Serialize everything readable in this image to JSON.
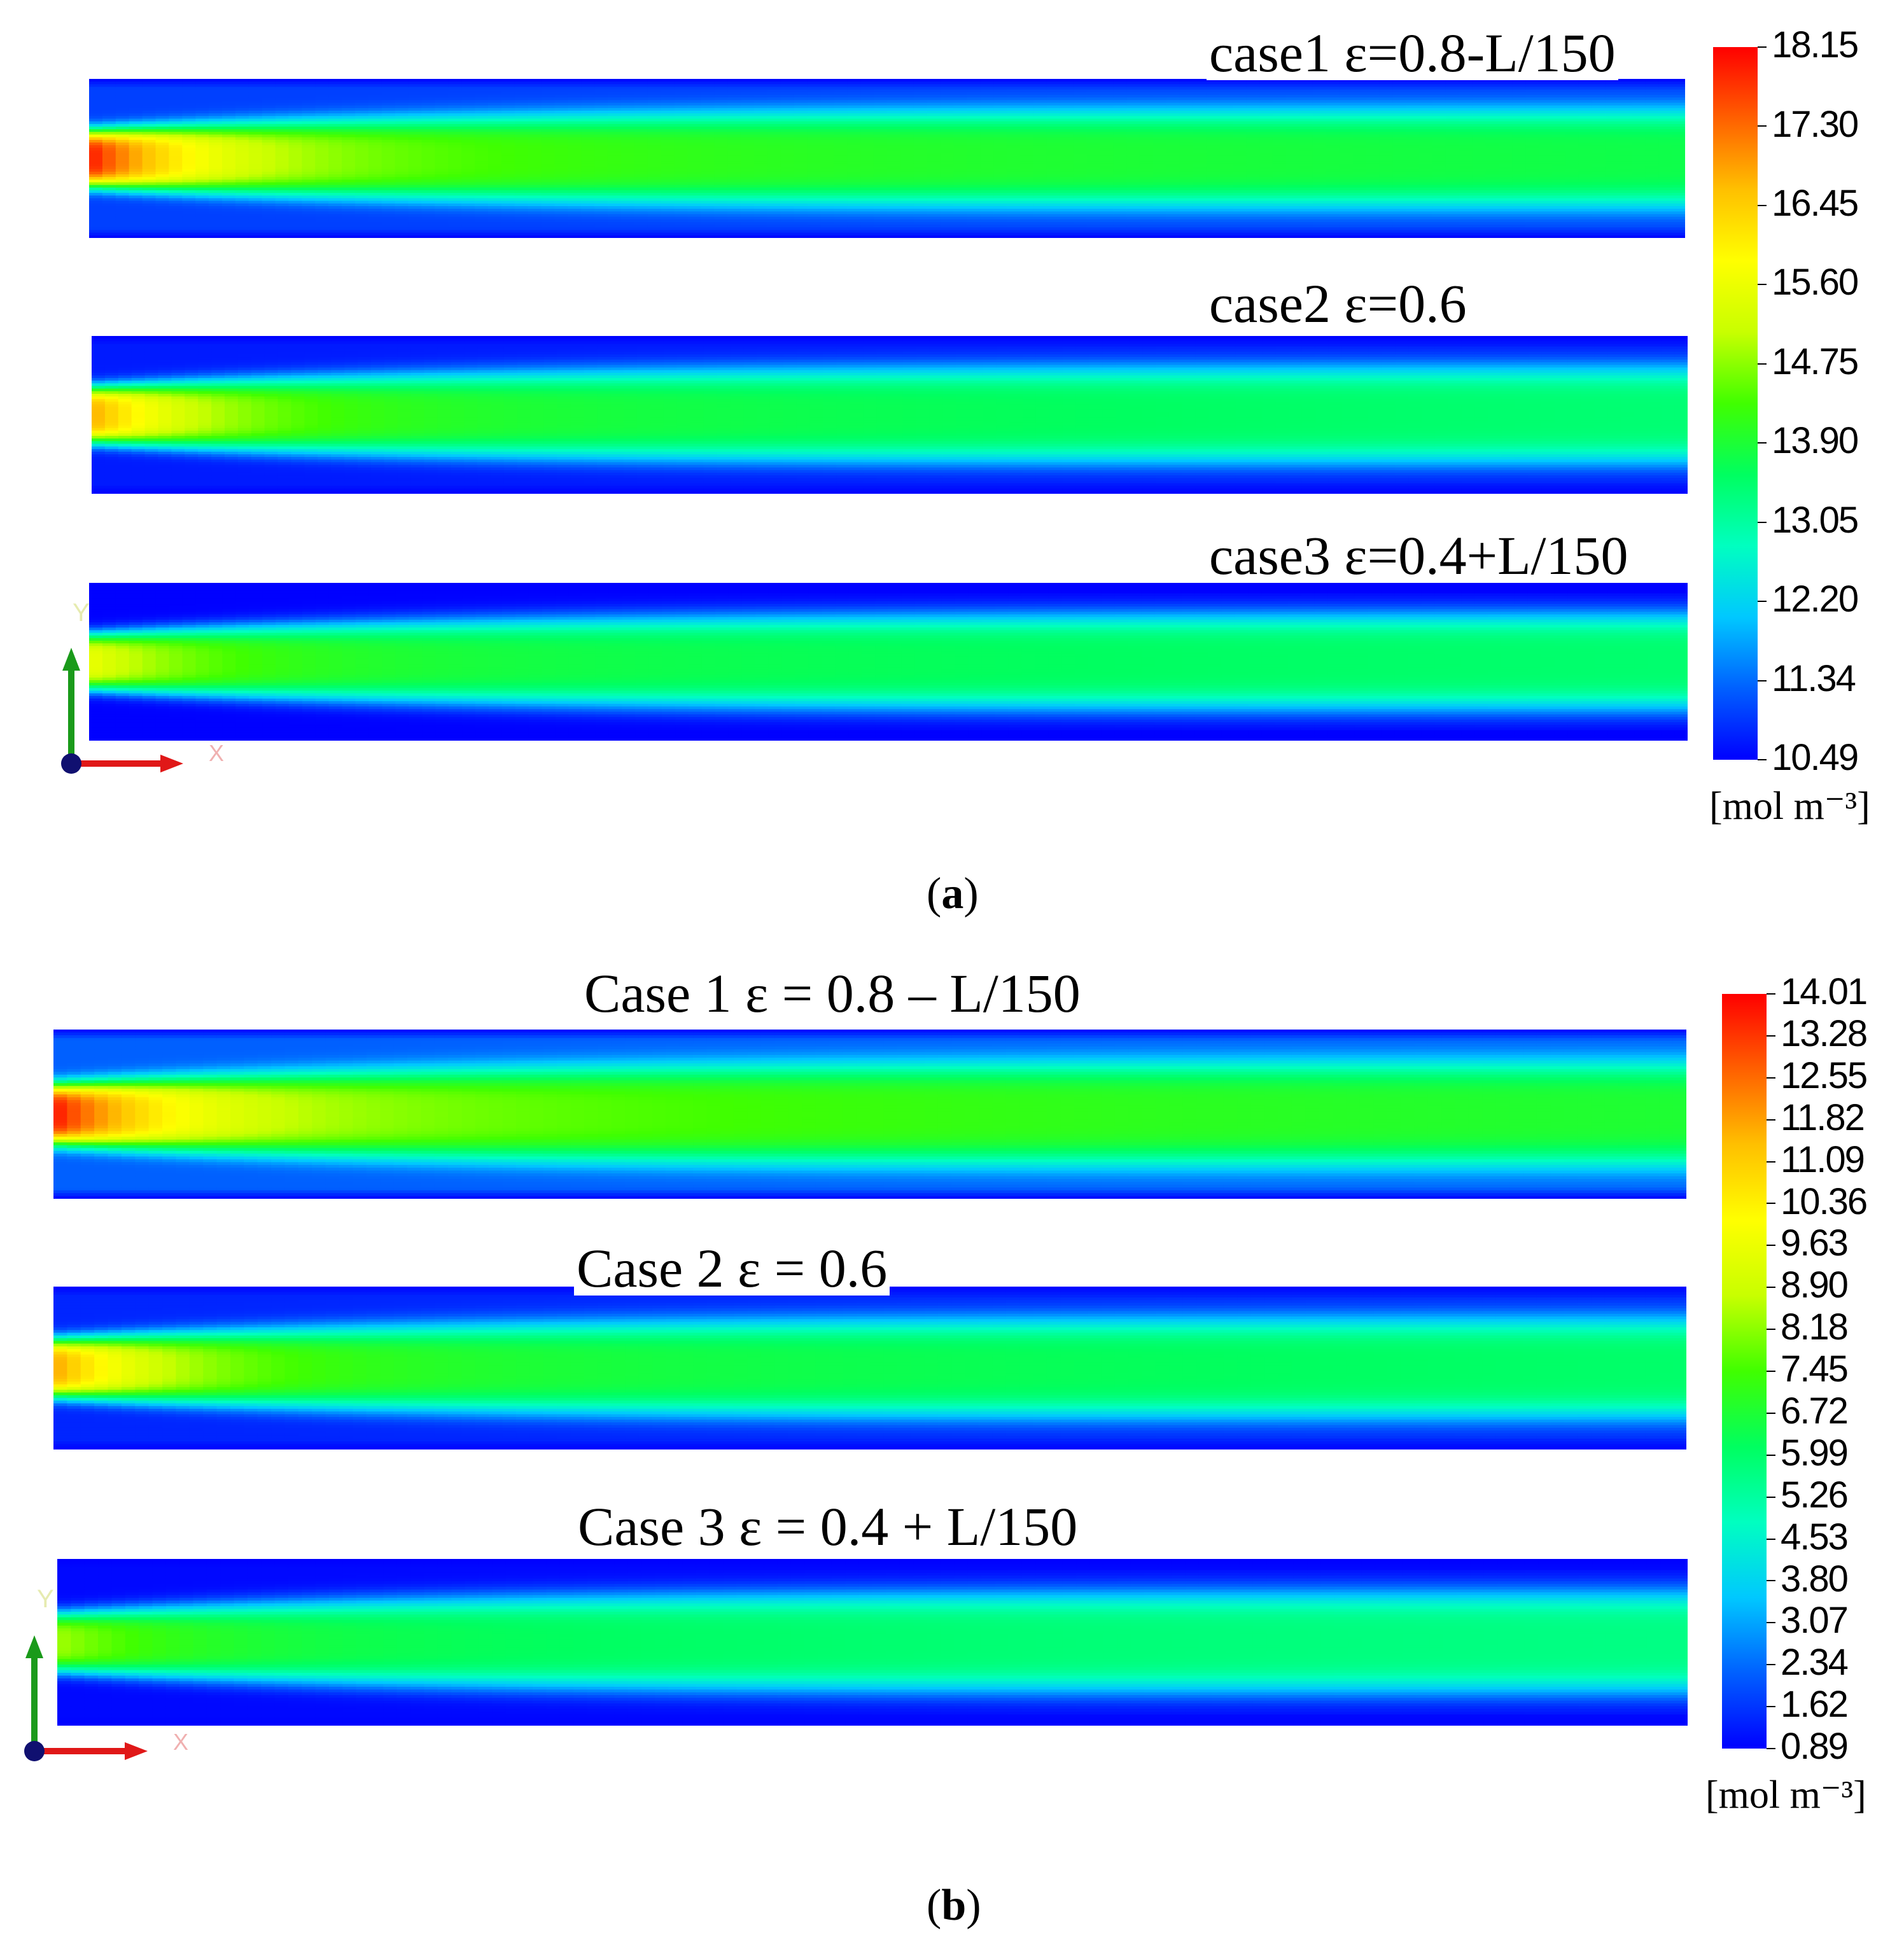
{
  "figure": {
    "panels": [
      {
        "id": "a",
        "label_open": "(",
        "label_letter": "a",
        "label_close": ")",
        "cases": [
          {
            "title": "case1 ε=0.8-L/150",
            "inlet_peak": 18.0,
            "core_mid": 14.6,
            "core_end": 13.5,
            "wall": 11.0
          },
          {
            "title": "case2 ε=0.6",
            "inlet_peak": 16.8,
            "core_mid": 14.2,
            "core_end": 13.2,
            "wall": 10.7
          },
          {
            "title": "case3 ε=0.4+L/150",
            "inlet_peak": 15.6,
            "core_mid": 14.0,
            "core_end": 13.3,
            "wall": 10.5
          }
        ],
        "colorbar": {
          "min": 10.49,
          "max": 18.15,
          "ticks": [
            "18.15",
            "17.30",
            "16.45",
            "15.60",
            "14.75",
            "13.90",
            "13.05",
            "12.20",
            "11.34",
            "10.49"
          ],
          "unit": "[mol m⁻³]"
        },
        "axes": {
          "y_label": "Y",
          "x_label": "X"
        }
      },
      {
        "id": "b",
        "label_open": "(",
        "label_letter": "b",
        "label_close": ")",
        "cases": [
          {
            "title": "Case 1 ε = 0.8 – L/150",
            "inlet_peak": 13.8,
            "core_mid": 8.5,
            "core_end": 6.3,
            "wall": 2.2
          },
          {
            "title": "Case 2 ε = 0.6",
            "inlet_peak": 11.8,
            "core_mid": 7.2,
            "core_end": 5.7,
            "wall": 1.4
          },
          {
            "title": "Case 3 ε = 0.4 + L/150",
            "inlet_peak": 8.4,
            "core_mid": 6.6,
            "core_end": 5.4,
            "wall": 1.0
          }
        ],
        "colorbar": {
          "min": 0.89,
          "max": 14.01,
          "ticks": [
            "14.01",
            "13.28",
            "12.55",
            "11.82",
            "11.09",
            "10.36",
            "9.63",
            "8.90",
            "8.18",
            "7.45",
            "6.72",
            "5.99",
            "5.26",
            "4.53",
            "3.80",
            "3.07",
            "2.34",
            "1.62",
            "0.89"
          ],
          "unit": "[mol m⁻³]"
        },
        "axes": {
          "y_label": "Y",
          "x_label": "X"
        }
      }
    ],
    "colormap": [
      "#0000ff",
      "#0060ff",
      "#00c8ff",
      "#00ffc0",
      "#00ff60",
      "#40ff00",
      "#c8ff00",
      "#ffff00",
      "#ffc000",
      "#ff6000",
      "#ff0000"
    ]
  }
}
